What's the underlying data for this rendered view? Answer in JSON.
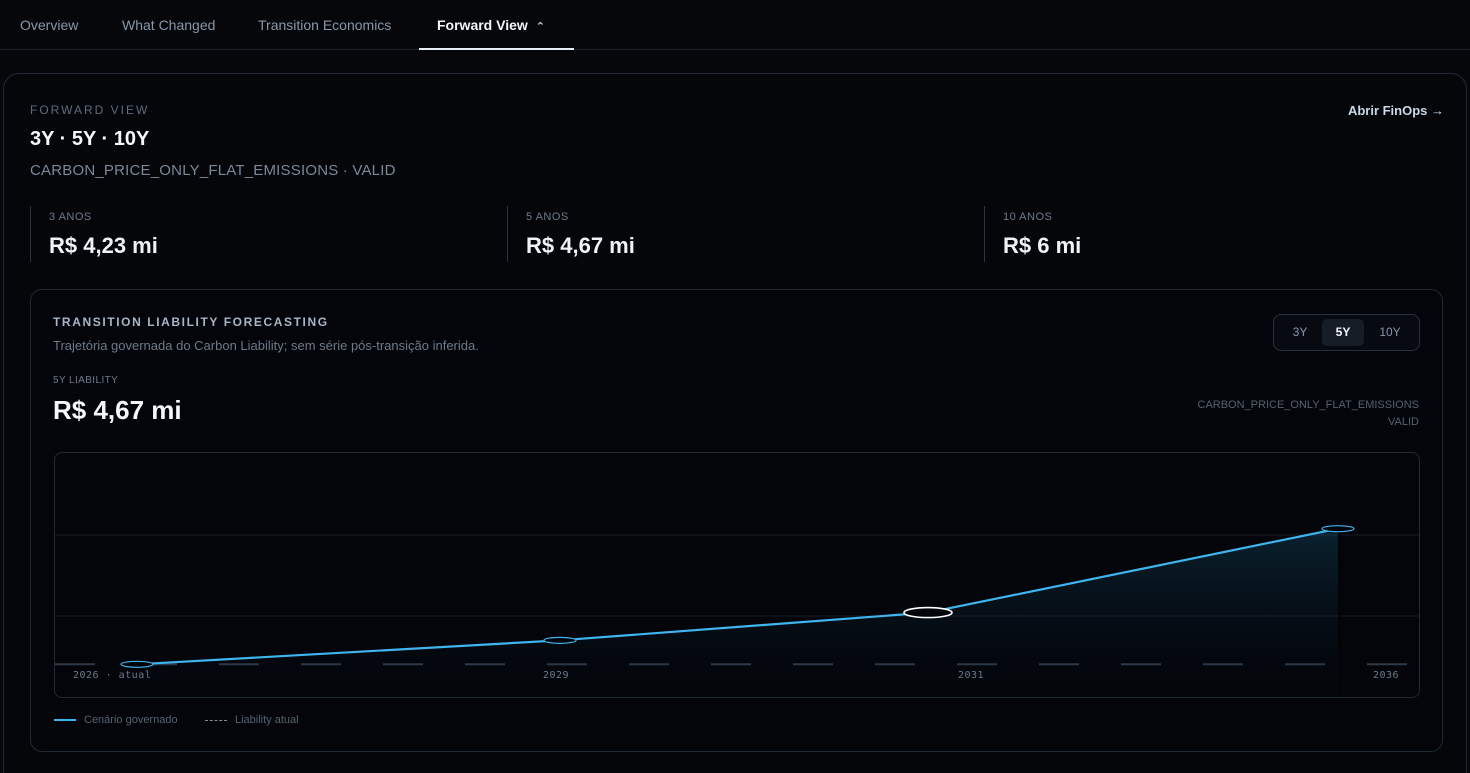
{
  "tabs": [
    {
      "label": "Overview"
    },
    {
      "label": "What Changed"
    },
    {
      "label": "Transition Economics"
    },
    {
      "label": "Forward View",
      "active": true
    }
  ],
  "header": {
    "eyebrow": "FORWARD VIEW",
    "title": "3Y · 5Y · 10Y",
    "subtitle": "CARBON_PRICE_ONLY_FLAT_EMISSIONS · VALID",
    "link": "Abrir FinOps →"
  },
  "kpis": [
    {
      "label": "3 ANOS",
      "value": "R$ 4,23 mi"
    },
    {
      "label": "5 ANOS",
      "value": "R$ 4,67 mi"
    },
    {
      "label": "10 ANOS",
      "value": "R$ 6 mi"
    }
  ],
  "forecast": {
    "title": "TRANSITION LIABILITY FORECASTING",
    "subtitle": "Trajetória governada do Carbon Liability; sem série pós-transição inferida.",
    "horizons": [
      "3Y",
      "5Y",
      "10Y"
    ],
    "selected_horizon": "5Y",
    "metric_label": "5Y LIABILITY",
    "metric_value": "R$ 4,67 mi",
    "scenario": "CARBON_PRICE_ONLY_FLAT_EMISSIONS",
    "status": "VALID"
  },
  "chart_data": {
    "type": "line",
    "x_labels": [
      "2026 · atual",
      "2029",
      "2031",
      "2036"
    ],
    "x": [
      2026,
      2029,
      2031,
      2036
    ],
    "series": [
      {
        "name": "Cenário governado",
        "values": [
          3.85,
          4.23,
          4.67,
          6.0
        ],
        "color": "#3fb4ee",
        "style": "solid"
      },
      {
        "name": "Liability atual",
        "values": [
          3.85,
          3.85,
          3.85,
          3.85
        ],
        "color": "#3a4452",
        "style": "dashed"
      }
    ],
    "ylim": [
      3.3,
      7.2
    ],
    "grid": true,
    "legend_position": "bottom-left"
  },
  "colors": {
    "accent": "#3fb4ee",
    "background": "#05070b"
  }
}
